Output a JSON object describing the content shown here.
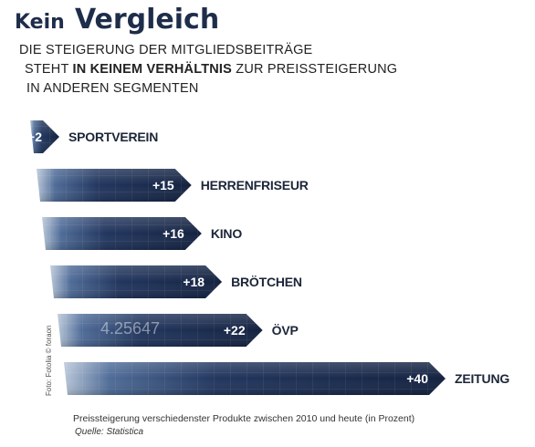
{
  "title": {
    "word1": "Kein",
    "word2": "Vergleich"
  },
  "subtitle": {
    "line1": "DIE STEIGERUNG DER MITGLIEDSBEITRÄGE",
    "line2_pre": "STEHT ",
    "line2_bold": "IN KEINEM VERHÄLTNIS",
    "line2_post": " ZUR PREISSTEIGERUNG",
    "line3": "IN ANDEREN SEGMENTEN"
  },
  "photo_credit": "Foto: Fotolia © foraon",
  "background_ticker_text": "4.25647",
  "caption": "Preissteigerung verschiedenster Produkte zwischen 2010 und heute (in Prozent)",
  "source": "Quelle: Statistica",
  "colors": {
    "bar_dark": "#142240",
    "bar_mid": "#2d4a78",
    "bar_light": "#b8c6d8",
    "title": "#1e2d4a"
  },
  "chart_data": {
    "type": "bar",
    "orientation": "horizontal",
    "categories": [
      "SPORTVEREIN",
      "HERRENFRISEUR",
      "KINO",
      "BRÖTCHEN",
      "ÖVP",
      "ZEITUNG"
    ],
    "values": [
      2,
      15,
      16,
      18,
      22,
      40
    ],
    "value_labels": [
      "+2",
      "+15",
      "+16",
      "+18",
      "+22",
      "+40"
    ],
    "unit": "Prozent",
    "xlim": [
      0,
      40
    ],
    "grid": false,
    "legend": "none"
  }
}
